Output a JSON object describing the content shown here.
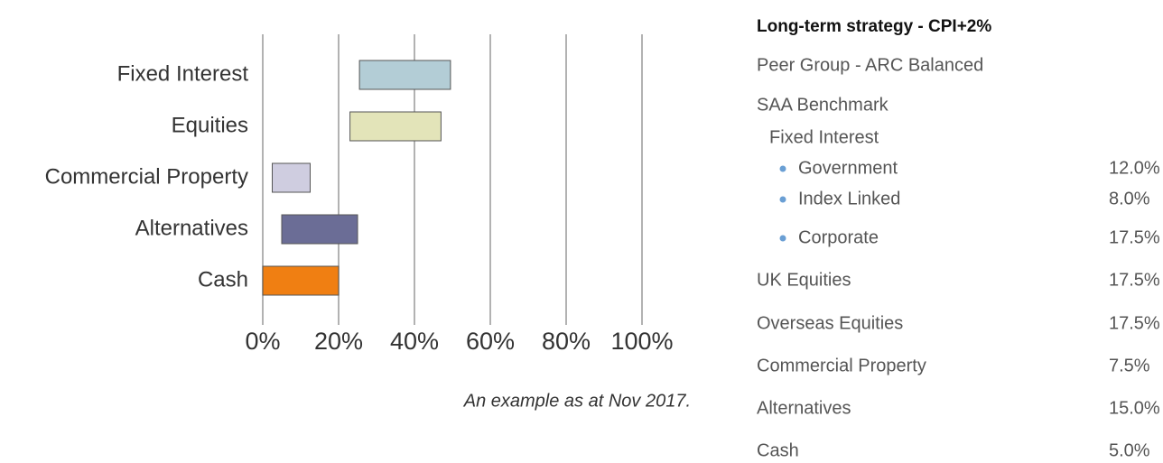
{
  "chart_data": {
    "type": "floating-bar",
    "categories": [
      "Fixed Interest",
      "Equities",
      "Commercial Property",
      "Alternatives",
      "Cash"
    ],
    "values": [
      [
        25.5,
        49.5
      ],
      [
        23,
        47
      ],
      [
        2.5,
        12.5
      ],
      [
        5,
        25
      ],
      [
        0,
        20
      ]
    ],
    "colors": [
      "#b3cdd6",
      "#e3e4b9",
      "#cfcde0",
      "#6b6d96",
      "#f07f12"
    ],
    "xlim": [
      0,
      100
    ],
    "xticks": [
      {
        "value": 0,
        "label": "0%"
      },
      {
        "value": 20,
        "label": "20%"
      },
      {
        "value": 40,
        "label": "40%"
      },
      {
        "value": 60,
        "label": "60%"
      },
      {
        "value": 80,
        "label": "80%"
      },
      {
        "value": 100,
        "label": "100%"
      }
    ],
    "grid": true,
    "annotation": "An example as at Nov 2017."
  },
  "panel": {
    "title": "Long-term strategy - CPI+2%",
    "peer_group": "Peer Group - ARC Balanced",
    "benchmark": "SAA Benchmark",
    "subheading": "Fixed Interest",
    "sub_items": [
      {
        "label": "Government",
        "value": "12.0%"
      },
      {
        "label": "Index Linked",
        "value": "8.0%"
      },
      {
        "label": "Corporate",
        "value": "17.5%"
      }
    ],
    "items": [
      {
        "label": "UK Equities",
        "value": "17.5%"
      },
      {
        "label": "Overseas Equities",
        "value": "17.5%"
      },
      {
        "label": "Commercial Property",
        "value": "7.5%"
      },
      {
        "label": "Alternatives",
        "value": "15.0%"
      },
      {
        "label": "Cash",
        "value": "5.0%"
      }
    ]
  }
}
